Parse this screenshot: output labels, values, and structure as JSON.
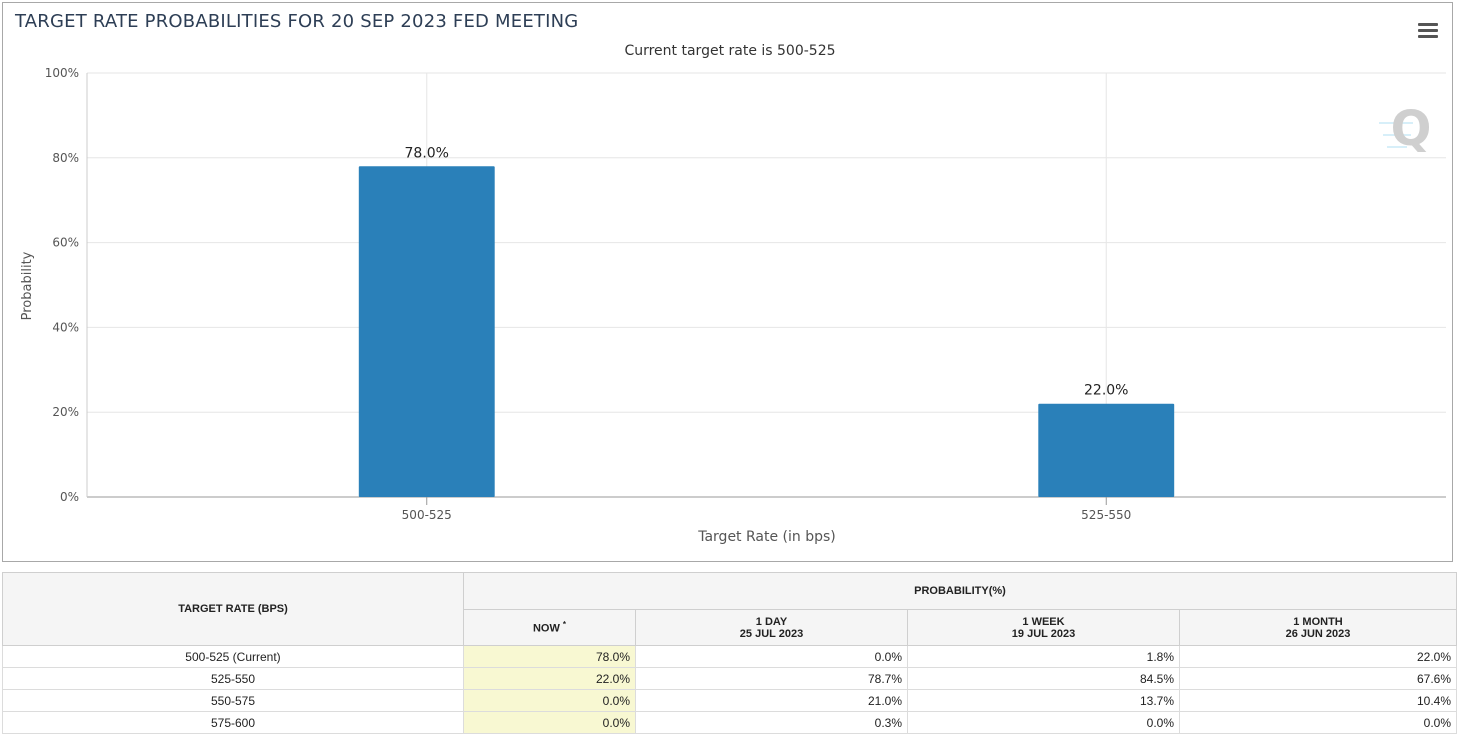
{
  "chart_data": {
    "type": "bar",
    "title": "TARGET RATE PROBABILITIES FOR 20 SEP 2023 FED MEETING",
    "subtitle": "Current target rate is 500-525",
    "xlabel": "Target Rate (in bps)",
    "ylabel": "Probability",
    "categories": [
      "500-525",
      "525-550"
    ],
    "values": [
      78.0,
      22.0
    ],
    "data_labels": [
      "78.0%",
      "22.0%"
    ],
    "ylim": [
      0,
      100
    ],
    "yticks": [
      "0%",
      "20%",
      "40%",
      "60%",
      "80%",
      "100%"
    ],
    "bar_color": "#2a80b9",
    "grid": true,
    "legend": "none"
  },
  "watermark": "Q",
  "table": {
    "col_target": "TARGET RATE (BPS)",
    "col_prob": "PROBABILITY(%)",
    "cols": [
      {
        "label": "NOW",
        "marker": "*",
        "date": ""
      },
      {
        "label": "1 DAY",
        "date": "25 JUL 2023"
      },
      {
        "label": "1 WEEK",
        "date": "19 JUL 2023"
      },
      {
        "label": "1 MONTH",
        "date": "26 JUN 2023"
      }
    ],
    "rows": [
      {
        "rate": "500-525 (Current)",
        "vals": [
          "78.0%",
          "0.0%",
          "1.8%",
          "22.0%"
        ]
      },
      {
        "rate": "525-550",
        "vals": [
          "22.0%",
          "78.7%",
          "84.5%",
          "67.6%"
        ]
      },
      {
        "rate": "550-575",
        "vals": [
          "0.0%",
          "21.0%",
          "13.7%",
          "10.4%"
        ]
      },
      {
        "rate": "575-600",
        "vals": [
          "0.0%",
          "0.3%",
          "0.0%",
          "0.0%"
        ]
      }
    ]
  }
}
